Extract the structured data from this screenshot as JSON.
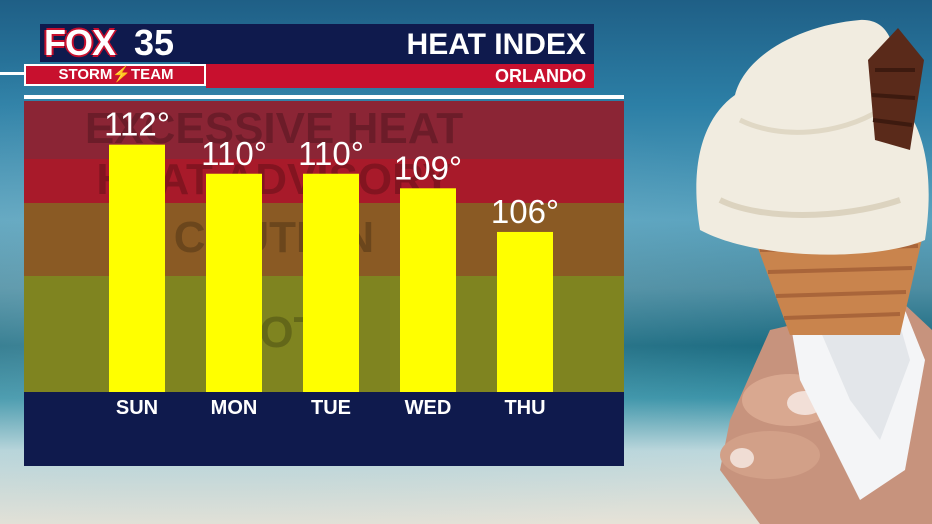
{
  "header": {
    "logo_fox": "FOX",
    "logo_num": "35",
    "storm_team": "STORM⚡TEAM",
    "title": "HEAT INDEX",
    "subtitle": "ORLANDO"
  },
  "colors": {
    "navy": "#0f1a4d",
    "red": "#c8102e",
    "bar": "#ffff00",
    "excessive_heat": "#8b2535",
    "heat_advisory": "#a81a2a",
    "caution": "#8a5a24",
    "hot": "#7f8420"
  },
  "zones": [
    {
      "key": "excessive_heat",
      "label": "EXCESSIVE HEAT",
      "from": 111,
      "to": 115
    },
    {
      "key": "heat_advisory",
      "label": "HEAT ADVISORY",
      "from": 108,
      "to": 111
    },
    {
      "key": "caution",
      "label": "CAUTION",
      "from": 103,
      "to": 108
    },
    {
      "key": "hot",
      "label": "HOT",
      "from": 95,
      "to": 103
    }
  ],
  "chart_data": {
    "type": "bar",
    "title": "HEAT INDEX",
    "subtitle": "ORLANDO",
    "categories": [
      "SUN",
      "MON",
      "TUE",
      "WED",
      "THU"
    ],
    "values": [
      112,
      110,
      110,
      109,
      106
    ],
    "value_labels": [
      "112°",
      "110°",
      "110°",
      "109°",
      "106°"
    ],
    "ylim": [
      95,
      115
    ],
    "grid": false,
    "legend": "none"
  }
}
